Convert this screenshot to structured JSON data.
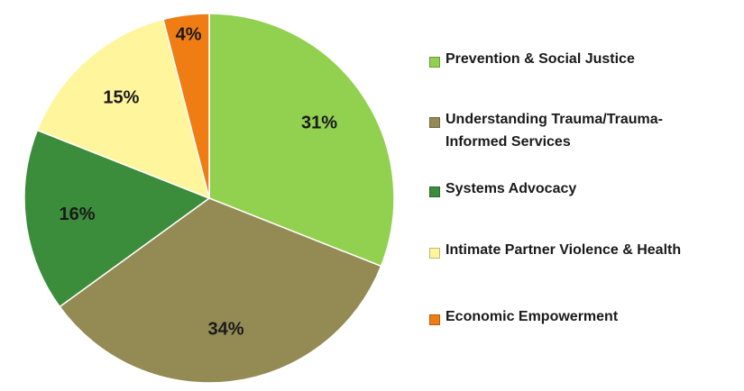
{
  "chart_data": {
    "type": "pie",
    "categories": [
      "Prevention & Social Justice",
      "Understanding Trauma/Trauma-Informed Services",
      "Systems Advocacy",
      "Intimate Partner Violence & Health",
      "Economic Empowerment"
    ],
    "values": [
      31,
      34,
      16,
      15,
      4
    ],
    "value_labels": [
      "31%",
      "34%",
      "16%",
      "15%",
      "4%"
    ],
    "colors": [
      "#92d050",
      "#948a54",
      "#3b8c3b",
      "#fff59d",
      "#f07c14"
    ]
  }
}
